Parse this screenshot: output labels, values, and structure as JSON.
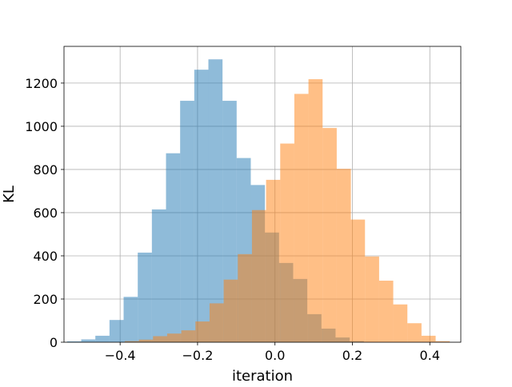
{
  "chart_data": {
    "type": "histogram",
    "xlabel": "iteration",
    "ylabel": "KL",
    "xlim": [
      -0.545,
      0.48
    ],
    "ylim": [
      0,
      1370
    ],
    "xticks": [
      -0.4,
      -0.2,
      0.0,
      0.2,
      0.4
    ],
    "xtick_labels": [
      "−0.4",
      "−0.2",
      "0.0",
      "0.2",
      "0.4"
    ],
    "yticks": [
      0,
      200,
      400,
      600,
      800,
      1000,
      1200
    ],
    "ytick_labels": [
      "0",
      "200",
      "400",
      "600",
      "800",
      "1000",
      "1200"
    ],
    "grid": true,
    "legend": false,
    "series": [
      {
        "color": "#1f77b4",
        "alpha": 0.5,
        "bin_width": 0.0365,
        "bin_starts": [
          -0.537,
          -0.5005,
          -0.464,
          -0.4275,
          -0.391,
          -0.3545,
          -0.318,
          -0.2815,
          -0.245,
          -0.2085,
          -0.172,
          -0.1355,
          -0.099,
          -0.0625,
          -0.026,
          0.0105,
          0.047,
          0.0835,
          0.12,
          0.1565,
          0.193
        ],
        "values": [
          4,
          13,
          30,
          103,
          210,
          415,
          615,
          875,
          1118,
          1262,
          1310,
          1118,
          853,
          728,
          508,
          367,
          293,
          130,
          63,
          22,
          5
        ]
      },
      {
        "color": "#ff7f0e",
        "alpha": 0.5,
        "bin_width": 0.0365,
        "bin_starts": [
          -0.388,
          -0.3515,
          -0.315,
          -0.2785,
          -0.242,
          -0.2055,
          -0.169,
          -0.1325,
          -0.096,
          -0.0595,
          -0.023,
          0.0135,
          0.05,
          0.0865,
          0.123,
          0.1595,
          0.196,
          0.2325,
          0.269,
          0.3055,
          0.342,
          0.3785,
          0.415
        ],
        "values": [
          5,
          12,
          28,
          40,
          55,
          96,
          180,
          290,
          408,
          612,
          752,
          920,
          1150,
          1218,
          992,
          803,
          568,
          397,
          285,
          175,
          88,
          30,
          5
        ]
      }
    ]
  }
}
